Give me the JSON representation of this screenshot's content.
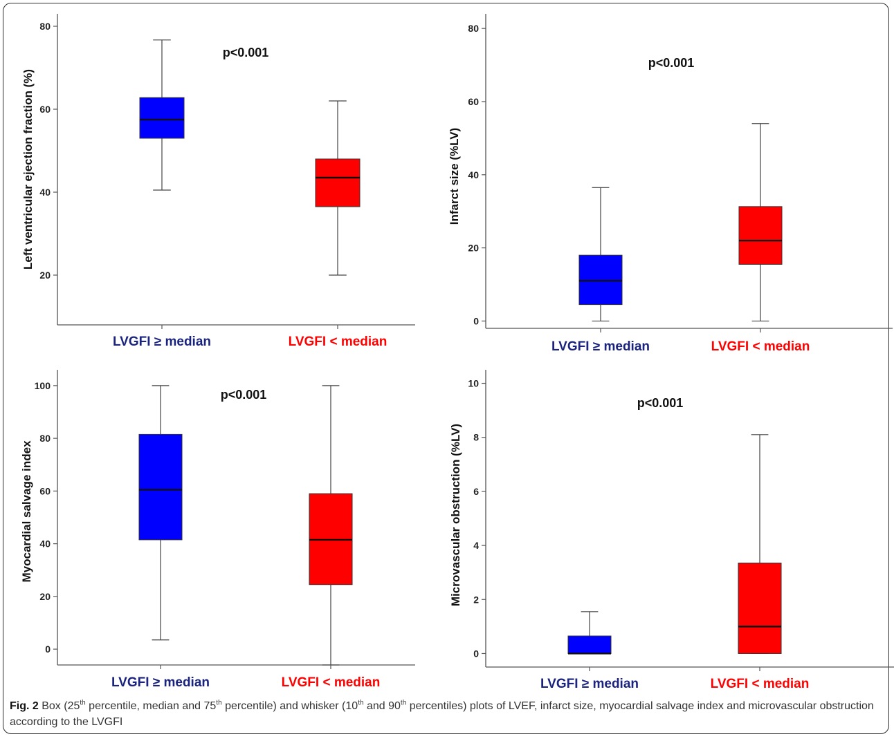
{
  "chart_data": [
    {
      "type": "box",
      "ylabel": "Left ventricular ejection fraction (%)",
      "annotation": "p<0.001",
      "ylim": [
        8,
        83
      ],
      "yticks": [
        "20",
        "40",
        "60",
        "80"
      ],
      "ytick_values": [
        20,
        40,
        60,
        80
      ],
      "categories": [
        "LVGFI ≥ median",
        "LVGFI < median"
      ],
      "category_colors": [
        "#1a237e",
        "#ff0000"
      ],
      "boxes": [
        {
          "whisker_low": 40.5,
          "q1": 53,
          "median": 57.5,
          "q3": 62.8,
          "whisker_high": 76.7,
          "color": "#0000ff"
        },
        {
          "whisker_low": 20,
          "q1": 36.5,
          "median": 43.5,
          "q3": 48,
          "whisker_high": 62,
          "color": "#ff0000"
        }
      ]
    },
    {
      "type": "box",
      "ylabel": "Infarct size (%LV)",
      "annotation": "p<0.001",
      "ylim": [
        -2,
        84
      ],
      "yticks": [
        "0",
        "20",
        "40",
        "60",
        "80"
      ],
      "ytick_values": [
        0,
        20,
        40,
        60,
        80
      ],
      "categories": [
        "LVGFI ≥ median",
        "LVGFI < median"
      ],
      "category_colors": [
        "#1a237e",
        "#ff0000"
      ],
      "boxes": [
        {
          "whisker_low": 0,
          "q1": 4.5,
          "median": 11,
          "q3": 18,
          "whisker_high": 36.5,
          "color": "#0000ff"
        },
        {
          "whisker_low": 0,
          "q1": 15.5,
          "median": 22,
          "q3": 31.3,
          "whisker_high": 54,
          "color": "#ff0000"
        }
      ]
    },
    {
      "type": "box",
      "ylabel": "Myocardial salvage index",
      "annotation": "p<0.001",
      "ylim": [
        -6,
        106
      ],
      "yticks": [
        "0",
        "20",
        "40",
        "60",
        "80",
        "100"
      ],
      "ytick_values": [
        0,
        20,
        40,
        60,
        80,
        100
      ],
      "categories": [
        "LVGFI ≥ median",
        "LVGFI < median"
      ],
      "category_colors": [
        "#1a237e",
        "#ff0000"
      ],
      "boxes": [
        {
          "whisker_low": 3.5,
          "q1": 41.5,
          "median": 60.5,
          "q3": 81.5,
          "whisker_high": 100,
          "color": "#0000ff"
        },
        {
          "whisker_low": -6,
          "q1": 24.5,
          "median": 41.5,
          "q3": 59,
          "whisker_high": 100,
          "color": "#ff0000"
        }
      ]
    },
    {
      "type": "box",
      "ylabel": "Microvascular obstruction  (%LV)",
      "annotation": "p<0.001",
      "ylim": [
        -0.5,
        10.5
      ],
      "yticks": [
        "0",
        "2",
        "4",
        "6",
        "8",
        "10"
      ],
      "ytick_values": [
        0,
        2,
        4,
        6,
        8,
        10
      ],
      "categories": [
        "LVGFI ≥ median",
        "LVGFI < median"
      ],
      "category_colors": [
        "#1a237e",
        "#ff0000"
      ],
      "boxes": [
        {
          "whisker_low": 0,
          "q1": 0,
          "median": 0,
          "q3": 0.65,
          "whisker_high": 1.55,
          "color": "#0000ff"
        },
        {
          "whisker_low": 0,
          "q1": 0,
          "median": 1.0,
          "q3": 3.35,
          "whisker_high": 8.1,
          "color": "#ff0000"
        }
      ]
    }
  ],
  "caption": {
    "figure_label": "Fig. 2",
    "text_a": " Box (25",
    "sup_a": "th",
    "text_b": " percentile, median and 75",
    "sup_b": "th",
    "text_c": " percentile) and whisker (10",
    "sup_c": "th",
    "text_d": " and 90",
    "sup_d": "th",
    "text_e": " percentiles) plots of LVEF, infarct size, myocardial salvage index and microvascular obstruction according to the LVGFI"
  }
}
